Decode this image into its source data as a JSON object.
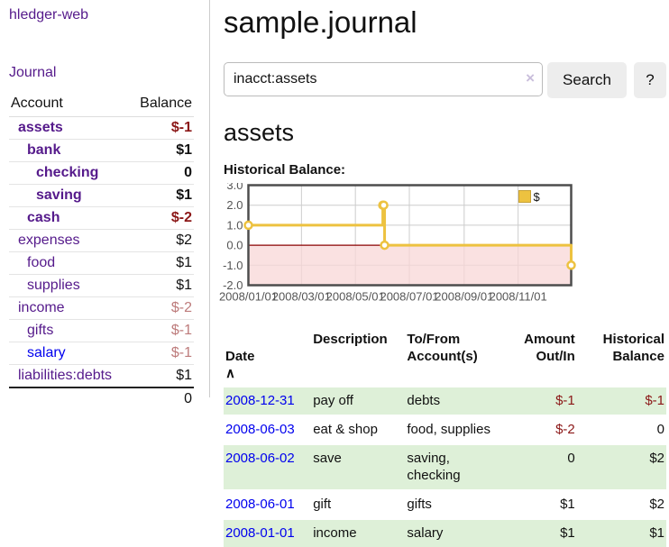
{
  "colors": {
    "link_purple": "#551a8b",
    "link_blue": "#0000ee",
    "negative_strong": "#8b1717",
    "negative_soft": "#bd7b7b",
    "row_stripe_green": "#def0d8",
    "series_yellow": "#edc240",
    "zero_line_red": "#8b0000",
    "negative_region_pink": "#f8d7d7"
  },
  "sidebar": {
    "brand": "hledger-web",
    "nav_journal": "Journal",
    "table": {
      "headers": {
        "account": "Account",
        "balance": "Balance"
      },
      "rows": [
        {
          "name": "assets",
          "balance": "$-1",
          "level": 1,
          "emphasis": true,
          "balance_tone": "neg-strong",
          "link_tone": "purple"
        },
        {
          "name": "bank",
          "balance": "$1",
          "level": 2,
          "emphasis": true,
          "balance_tone": "pos",
          "link_tone": "purple"
        },
        {
          "name": "checking",
          "balance": "0",
          "level": 3,
          "emphasis": true,
          "balance_tone": "pos",
          "link_tone": "purple"
        },
        {
          "name": "saving",
          "balance": "$1",
          "level": 3,
          "emphasis": true,
          "balance_tone": "pos",
          "link_tone": "purple"
        },
        {
          "name": "cash",
          "balance": "$-2",
          "level": 2,
          "emphasis": true,
          "balance_tone": "neg-strong",
          "link_tone": "purple"
        },
        {
          "name": "expenses",
          "balance": "$2",
          "level": 1,
          "emphasis": false,
          "balance_tone": "pos",
          "link_tone": "purple"
        },
        {
          "name": "food",
          "balance": "$1",
          "level": 2,
          "emphasis": false,
          "balance_tone": "pos",
          "link_tone": "purple"
        },
        {
          "name": "supplies",
          "balance": "$1",
          "level": 2,
          "emphasis": false,
          "balance_tone": "pos",
          "link_tone": "purple"
        },
        {
          "name": "income",
          "balance": "$-2",
          "level": 1,
          "emphasis": false,
          "balance_tone": "neg-soft",
          "link_tone": "purple"
        },
        {
          "name": "gifts",
          "balance": "$-1",
          "level": 2,
          "emphasis": false,
          "balance_tone": "neg-soft",
          "link_tone": "purple"
        },
        {
          "name": "salary",
          "balance": "$-1",
          "level": 2,
          "emphasis": false,
          "balance_tone": "neg-soft",
          "link_tone": "blue"
        },
        {
          "name": "liabilities:debts",
          "balance": "$1",
          "level": 1,
          "emphasis": false,
          "balance_tone": "pos",
          "link_tone": "purple"
        }
      ],
      "total": "0"
    }
  },
  "main": {
    "title": "sample.journal",
    "search": {
      "value": "inacct:assets",
      "clear_icon": "×",
      "search_button": "Search",
      "help_button": "?"
    },
    "account_heading": "assets",
    "section_label": "Historical Balance:"
  },
  "chart_data": {
    "type": "line",
    "step": true,
    "title": "Historical Balance",
    "legend": [
      {
        "label": "$",
        "color": "#edc240"
      }
    ],
    "x_start": "2008-01-01",
    "x_end": "2008-12-31",
    "xticks": [
      {
        "label": "2008/01/01",
        "date": "2008-01-01"
      },
      {
        "label": "2008/03/01",
        "date": "2008-03-01"
      },
      {
        "label": "2008/05/01",
        "date": "2008-05-01"
      },
      {
        "label": "2008/07/01",
        "date": "2008-07-01"
      },
      {
        "label": "2008/09/01",
        "date": "2008-09-01"
      },
      {
        "label": "2008/11/01",
        "date": "2008-11-01"
      }
    ],
    "ylim": [
      -2,
      3
    ],
    "yticks": [
      3,
      2,
      1,
      0,
      -1,
      -2
    ],
    "series": [
      {
        "name": "$",
        "color": "#edc240",
        "points": [
          [
            "2008-01-01",
            1
          ],
          [
            "2008-06-01",
            2
          ],
          [
            "2008-06-02",
            2
          ],
          [
            "2008-06-03",
            0
          ],
          [
            "2008-12-31",
            -1
          ]
        ]
      }
    ],
    "negative_region_color": "#f8d7d7",
    "zero_line_color": "#8b0000",
    "grid": true,
    "legend_position": "top-right"
  },
  "register": {
    "headers": {
      "date": "Date",
      "date_sort_icon": "∧",
      "description": "Description",
      "accounts": "To/From\nAccount(s)",
      "amount": "Amount\nOut/In",
      "balance": "Historical\nBalance"
    },
    "rows": [
      {
        "date": "2008-12-31",
        "description": "pay off",
        "accounts": "debts",
        "amount": "$-1",
        "amount_tone": "neg",
        "balance": "$-1",
        "balance_tone": "neg"
      },
      {
        "date": "2008-06-03",
        "description": "eat & shop",
        "accounts": "food, supplies",
        "amount": "$-2",
        "amount_tone": "neg",
        "balance": "0",
        "balance_tone": "pos"
      },
      {
        "date": "2008-06-02",
        "description": "save",
        "accounts": "saving,\nchecking",
        "amount": "0",
        "amount_tone": "pos",
        "balance": "$2",
        "balance_tone": "pos"
      },
      {
        "date": "2008-06-01",
        "description": "gift",
        "accounts": "gifts",
        "amount": "$1",
        "amount_tone": "pos",
        "balance": "$2",
        "balance_tone": "pos"
      },
      {
        "date": "2008-01-01",
        "description": "income",
        "accounts": "salary",
        "amount": "$1",
        "amount_tone": "pos",
        "balance": "$1",
        "balance_tone": "pos"
      }
    ]
  }
}
